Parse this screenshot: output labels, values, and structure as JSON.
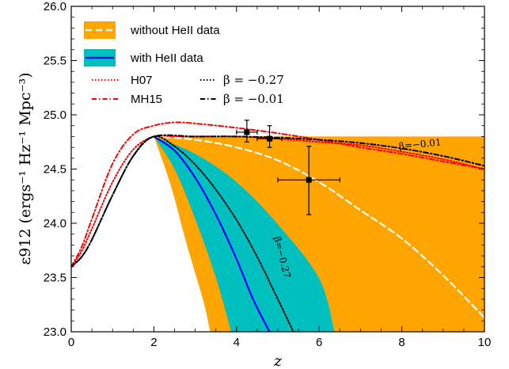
{
  "chart_data": {
    "type": "line",
    "xlabel": "z",
    "ylabel": "ε912 (ergs⁻¹ Hz⁻¹ Mpc⁻³)",
    "xlim": [
      0,
      10
    ],
    "ylim": [
      23.0,
      26.0
    ],
    "x_ticks": [
      "0",
      "2",
      "4",
      "6",
      "8",
      "10"
    ],
    "y_ticks": [
      "23.0",
      "23.5",
      "24.0",
      "24.5",
      "25.0",
      "25.5",
      "26.0"
    ],
    "colors": {
      "orange_band": "#ffa500",
      "cyan_band": "#00bfbf",
      "blue_line": "#0000ff",
      "white_dashed": "#ffffff",
      "red": "#ff0000",
      "black": "#000000"
    },
    "legend": {
      "placement": "top-left",
      "entries": [
        {
          "label": "without HeII data",
          "style": "orange band + white dashed"
        },
        {
          "label": "with HeII data",
          "style": "cyan band + blue solid"
        },
        {
          "label": "H07",
          "style": "red dotted"
        },
        {
          "label": "MH15",
          "style": "red dash-dot"
        },
        {
          "label": "β = −0.27",
          "style": "black dotted"
        },
        {
          "label": "β = −0.01",
          "style": "black dash-dot"
        }
      ]
    },
    "bands": [
      {
        "id": "without_heii",
        "upper": [
          [
            2.0,
            24.8
          ],
          [
            10.0,
            24.8
          ]
        ],
        "lower": [
          [
            2.0,
            24.8
          ],
          [
            2.4,
            24.36
          ],
          [
            2.8,
            23.8
          ],
          [
            3.2,
            23.28
          ],
          [
            3.36,
            23.0
          ]
        ]
      },
      {
        "id": "with_heii",
        "upper": [
          [
            2.0,
            24.8
          ],
          [
            3.0,
            24.64
          ],
          [
            4.0,
            24.38
          ],
          [
            5.0,
            23.99
          ],
          [
            6.0,
            23.49
          ],
          [
            6.37,
            23.0
          ]
        ],
        "lower": [
          [
            2.0,
            24.8
          ],
          [
            2.5,
            24.5
          ],
          [
            3.0,
            24.04
          ],
          [
            3.5,
            23.5
          ],
          [
            3.87,
            23.0
          ]
        ]
      }
    ],
    "series": [
      {
        "id": "white_dashed",
        "x": [
          2.0,
          3.0,
          4.0,
          5.0,
          6.0,
          7.0,
          8.0,
          9.0,
          10.0
        ],
        "y": [
          24.8,
          24.77,
          24.7,
          24.58,
          24.38,
          24.12,
          23.86,
          23.52,
          23.13
        ]
      },
      {
        "id": "blue_solid",
        "x": [
          2.0,
          2.5,
          3.0,
          3.5,
          4.0,
          4.4,
          4.8
        ],
        "y": [
          24.8,
          24.67,
          24.42,
          24.08,
          23.67,
          23.3,
          23.0
        ]
      },
      {
        "id": "H07",
        "x": [
          0.0,
          0.25,
          0.5,
          1.0,
          1.5,
          2.0,
          2.5,
          3.0,
          4.0,
          5.0,
          6.0,
          7.0,
          8.0,
          9.0,
          10.0
        ],
        "y": [
          23.6,
          23.74,
          23.95,
          24.38,
          24.68,
          24.8,
          24.8,
          24.8,
          24.8,
          24.78,
          24.75,
          24.72,
          24.66,
          24.59,
          24.5
        ]
      },
      {
        "id": "MH15",
        "x": [
          0.0,
          0.25,
          0.5,
          1.0,
          1.5,
          2.0,
          2.5,
          3.0,
          4.0,
          5.0,
          6.0,
          7.0,
          8.0,
          9.0,
          10.0
        ],
        "y": [
          23.6,
          23.78,
          24.04,
          24.55,
          24.82,
          24.9,
          24.93,
          24.92,
          24.88,
          24.83,
          24.77,
          24.7,
          24.64,
          24.57,
          24.5
        ]
      },
      {
        "id": "beta_-0.27",
        "x": [
          0.0,
          0.25,
          0.5,
          1.0,
          1.5,
          2.0,
          2.5,
          3.0,
          3.5,
          4.0,
          4.5,
          5.0,
          5.5,
          5.87
        ],
        "y": [
          23.6,
          23.69,
          23.85,
          24.26,
          24.62,
          24.8,
          24.71,
          24.54,
          24.31,
          24.03,
          23.69,
          23.3,
          22.9,
          22.6
        ]
      },
      {
        "id": "beta_-0.01",
        "x": [
          0.0,
          0.25,
          0.5,
          1.0,
          1.5,
          2.0,
          3.0,
          4.0,
          5.0,
          6.0,
          7.0,
          8.0,
          9.0,
          10.0
        ],
        "y": [
          23.6,
          23.69,
          23.85,
          24.26,
          24.62,
          24.8,
          24.8,
          24.8,
          24.79,
          24.77,
          24.74,
          24.69,
          24.62,
          24.53
        ]
      }
    ],
    "data_points": [
      {
        "x": 4.25,
        "y": 24.84,
        "xerr": [
          0.25,
          0.25
        ],
        "yerr": [
          0.09,
          0.11
        ]
      },
      {
        "x": 4.8,
        "y": 24.78,
        "xerr": [
          0.3,
          0.3
        ],
        "yerr": [
          0.08,
          0.12
        ]
      },
      {
        "x": 5.75,
        "y": 24.4,
        "xerr": [
          0.75,
          0.75
        ],
        "yerr": [
          0.32,
          0.31
        ]
      }
    ],
    "annotations": [
      {
        "text": "β=−0.01",
        "x": 8.45,
        "y": 24.7,
        "angle": -6
      },
      {
        "text": "β=−0.27",
        "x": 5.03,
        "y": 23.68,
        "angle": 76
      }
    ]
  }
}
